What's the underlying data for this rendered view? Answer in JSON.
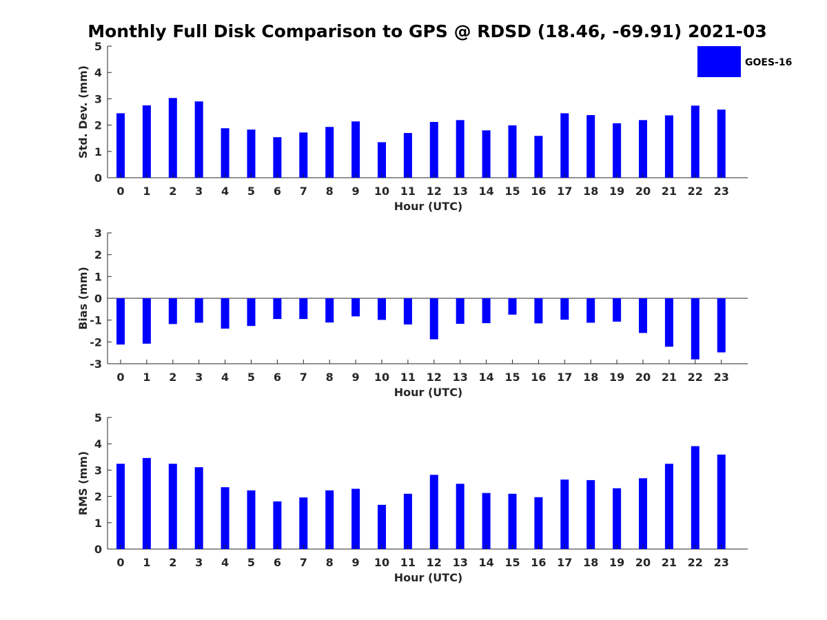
{
  "chart_data": {
    "title": "Monthly Full Disk Comparison to GPS @ RDSD (18.46, -69.91) 2021-03",
    "legend": {
      "label": "GOES-16",
      "color": "#0000ff",
      "position": "top-right"
    },
    "bar_color": "#0000ff",
    "panels": [
      {
        "type": "bar",
        "name": "std-dev",
        "xlabel": "Hour (UTC)",
        "ylabel": "Std. Dev. (mm)",
        "ylim": [
          0,
          5
        ],
        "yticks": [
          0,
          1,
          2,
          3,
          4,
          5
        ],
        "categories": [
          "0",
          "1",
          "2",
          "3",
          "4",
          "5",
          "6",
          "7",
          "8",
          "9",
          "10",
          "11",
          "12",
          "13",
          "14",
          "15",
          "16",
          "17",
          "18",
          "19",
          "20",
          "21",
          "22",
          "23"
        ],
        "values": [
          2.45,
          2.75,
          3.03,
          2.9,
          1.88,
          1.83,
          1.54,
          1.72,
          1.93,
          2.14,
          1.35,
          1.7,
          2.12,
          2.19,
          1.8,
          1.99,
          1.59,
          2.45,
          2.38,
          2.07,
          2.19,
          2.37,
          2.74,
          2.59
        ]
      },
      {
        "type": "bar",
        "name": "bias",
        "xlabel": "Hour (UTC)",
        "ylabel": "Bias (mm)",
        "ylim": [
          -3,
          3
        ],
        "yticks": [
          -3,
          -2,
          -1,
          0,
          1,
          2,
          3
        ],
        "categories": [
          "0",
          "1",
          "2",
          "3",
          "4",
          "5",
          "6",
          "7",
          "8",
          "9",
          "10",
          "11",
          "12",
          "13",
          "14",
          "15",
          "16",
          "17",
          "18",
          "19",
          "20",
          "21",
          "22",
          "23"
        ],
        "values": [
          -2.12,
          -2.08,
          -1.18,
          -1.12,
          -1.39,
          -1.27,
          -0.95,
          -0.95,
          -1.11,
          -0.83,
          -0.99,
          -1.2,
          -1.88,
          -1.17,
          -1.14,
          -0.75,
          -1.15,
          -0.98,
          -1.12,
          -1.07,
          -1.59,
          -2.22,
          -2.8,
          -2.48
        ]
      },
      {
        "type": "bar",
        "name": "rms",
        "xlabel": "Hour (UTC)",
        "ylabel": "RMS (mm)",
        "ylim": [
          0,
          5
        ],
        "yticks": [
          0,
          1,
          2,
          3,
          4,
          5
        ],
        "categories": [
          "0",
          "1",
          "2",
          "3",
          "4",
          "5",
          "6",
          "7",
          "8",
          "9",
          "10",
          "11",
          "12",
          "13",
          "14",
          "15",
          "16",
          "17",
          "18",
          "19",
          "20",
          "21",
          "22",
          "23"
        ],
        "values": [
          3.24,
          3.46,
          3.24,
          3.11,
          2.35,
          2.23,
          1.81,
          1.96,
          2.23,
          2.29,
          1.68,
          2.1,
          2.82,
          2.48,
          2.13,
          2.1,
          1.97,
          2.64,
          2.62,
          2.31,
          2.69,
          3.24,
          3.91,
          3.59
        ]
      }
    ]
  }
}
